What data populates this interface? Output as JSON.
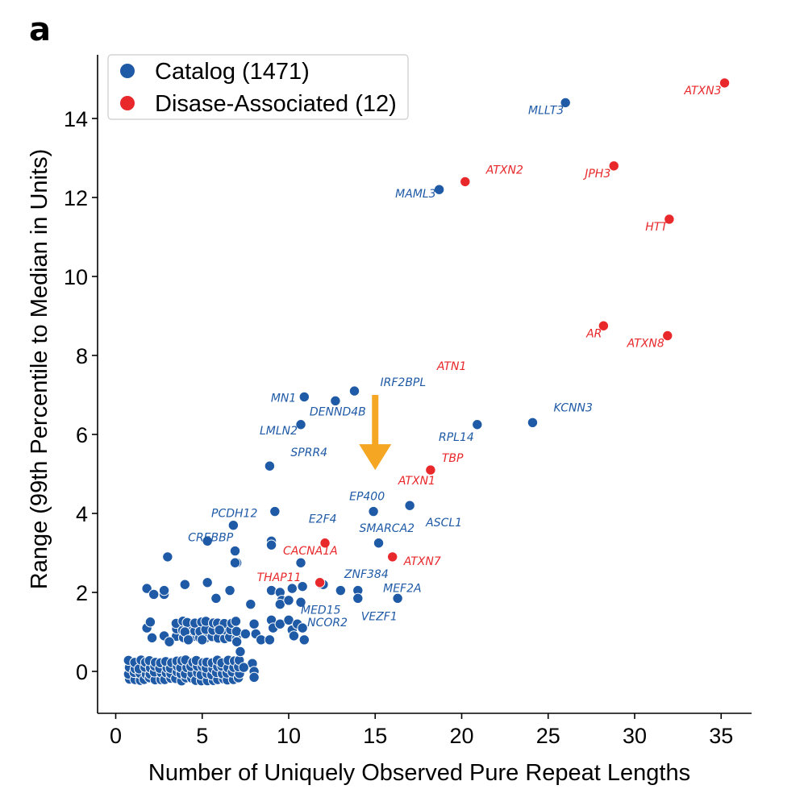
{
  "panel_label": "a",
  "colors": {
    "catalog": "#1f5aa6",
    "disease": "#e8282b",
    "arrow": "#f5a623",
    "point_edge": "#ffffff"
  },
  "chart_data": {
    "type": "scatter",
    "xlabel": "Number of Uniquely Observed Pure Repeat Lengths",
    "ylabel": "Range (99th Percentile to Median in Units)",
    "xlim": [
      -1,
      37
    ],
    "ylim": [
      -1,
      15.6
    ],
    "xticks": [
      0,
      5,
      10,
      15,
      20,
      25,
      30,
      35
    ],
    "yticks": [
      0,
      2,
      4,
      6,
      8,
      10,
      12,
      14
    ],
    "legend": {
      "position": "top-left",
      "entries": [
        {
          "label": "Catalog (1471)",
          "series": "catalog"
        },
        {
          "label": "Disase-Associated (12)",
          "series": "disease"
        }
      ]
    },
    "series": [
      {
        "name": "Catalog (1471)",
        "key": "catalog",
        "labeled_points": [
          {
            "label": "MLLT3",
            "x": 26.0,
            "y": 14.4
          },
          {
            "label": "MAML3",
            "x": 18.7,
            "y": 12.2
          },
          {
            "label": "IRF2BPL",
            "x": 13.8,
            "y": 7.1
          },
          {
            "label": "MN1",
            "x": 10.9,
            "y": 6.95
          },
          {
            "label": "DENND4B",
            "x": 12.7,
            "y": 6.85
          },
          {
            "label": "LMLN2",
            "x": 10.7,
            "y": 6.25
          },
          {
            "label": "KCNN3",
            "x": 24.1,
            "y": 6.3
          },
          {
            "label": "RPL14",
            "x": 20.9,
            "y": 6.25
          },
          {
            "label": "SPRR4",
            "x": 8.9,
            "y": 5.2
          },
          {
            "label": "ASCL1",
            "x": 17.0,
            "y": 4.2
          },
          {
            "label": "EP400",
            "x": 14.9,
            "y": 4.05
          },
          {
            "label": "E2F4",
            "x": 9.2,
            "y": 4.05
          },
          {
            "label": "PCDH12",
            "x": 6.8,
            "y": 3.7
          },
          {
            "label": "CREBBP",
            "x": 5.3,
            "y": 3.3
          },
          {
            "label": "SMARCA2",
            "x": 15.2,
            "y": 3.25
          },
          {
            "label": "ZNF384",
            "x": 12.0,
            "y": 2.2
          },
          {
            "label": "MEF2A",
            "x": 16.3,
            "y": 1.85
          },
          {
            "label": "VEZF1",
            "x": 14.0,
            "y": 1.85
          },
          {
            "label": "MED15",
            "x": 10.7,
            "y": 1.75
          },
          {
            "label": "NCOR2",
            "x": 10.8,
            "y": 1.1
          }
        ],
        "other_points": [
          [
            3,
            2.9
          ],
          [
            6.9,
            3.05
          ],
          [
            7.0,
            2.75
          ],
          [
            6.9,
            2.75
          ],
          [
            9.0,
            3.3
          ],
          [
            9.0,
            3.2
          ],
          [
            10.7,
            2.75
          ],
          [
            1.8,
            2.1
          ],
          [
            2.2,
            1.95
          ],
          [
            2.8,
            1.95
          ],
          [
            2.8,
            2.05
          ],
          [
            4.0,
            2.2
          ],
          [
            5.3,
            2.25
          ],
          [
            5.8,
            1.85
          ],
          [
            6.6,
            2.05
          ],
          [
            7.8,
            1.7
          ],
          [
            9.0,
            2.05
          ],
          [
            9.5,
            2.0
          ],
          [
            9.6,
            1.8
          ],
          [
            9.5,
            1.7
          ],
          [
            10.2,
            2.1
          ],
          [
            10.8,
            2.15
          ],
          [
            11.9,
            2.2
          ],
          [
            13.0,
            2.05
          ],
          [
            14.0,
            2.05
          ],
          [
            10.0,
            1.8
          ],
          [
            1.8,
            1.1
          ],
          [
            2.0,
            1.25
          ],
          [
            2.1,
            0.85
          ],
          [
            2.8,
            0.9
          ],
          [
            3.1,
            0.75
          ],
          [
            4.0,
            1.0
          ],
          [
            4.2,
            0.8
          ],
          [
            5.0,
            0.8
          ],
          [
            6.0,
            1.05
          ],
          [
            7.0,
            0.75
          ],
          [
            7.2,
            0.5
          ],
          [
            7.5,
            0.95
          ],
          [
            8.0,
            1.2
          ],
          [
            8.1,
            0.95
          ],
          [
            8.4,
            0.8
          ],
          [
            9.0,
            1.3
          ],
          [
            9.1,
            1.1
          ],
          [
            9.5,
            1.2
          ],
          [
            10.0,
            1.3
          ],
          [
            10.2,
            1.05
          ],
          [
            10.5,
            1.2
          ],
          [
            10.9,
            0.8
          ],
          [
            8.9,
            0.8
          ],
          [
            10.3,
            0.9
          ],
          [
            7.9,
            0.2
          ],
          [
            8.0,
            0.0
          ],
          [
            8.0,
            -0.15
          ],
          [
            7.4,
            0.1
          ]
        ],
        "dense_cluster": {
          "x_range": [
            0.8,
            7.2
          ],
          "y_values": [
            -0.2,
            -0.05,
            0.1,
            0.25
          ],
          "upper_band": {
            "x_range": [
              3.5,
              7.2
            ],
            "y_values": [
              0.85,
              1.05,
              1.25
            ]
          }
        }
      },
      {
        "name": "Disase-Associated (12)",
        "key": "disease",
        "labeled_points": [
          {
            "label": "ATXN3",
            "x": 35.2,
            "y": 14.9
          },
          {
            "label": "JPH3",
            "x": 28.8,
            "y": 12.8
          },
          {
            "label": "ATXN2",
            "x": 20.2,
            "y": 12.4
          },
          {
            "label": "HTT",
            "x": 32.0,
            "y": 11.45
          },
          {
            "label": "AR",
            "x": 28.2,
            "y": 8.75
          },
          {
            "label": "ATXN8",
            "x": 31.9,
            "y": 8.5
          },
          {
            "label": "ATN1",
            "x": 18.2,
            "y": 5.1
          },
          {
            "label": "TBP",
            "x": 18.2,
            "y": 5.1
          },
          {
            "label": "ATXN1",
            "x": 18.2,
            "y": 5.1
          },
          {
            "label": "CACNA1A",
            "x": 12.1,
            "y": 3.25
          },
          {
            "label": "ATXN7",
            "x": 16.0,
            "y": 2.9
          },
          {
            "label": "THAP11",
            "x": 11.8,
            "y": 2.25
          }
        ]
      }
    ],
    "annotation": {
      "type": "arrow",
      "x": 15.0,
      "y_from": 7.0,
      "y_to": 5.1
    }
  }
}
